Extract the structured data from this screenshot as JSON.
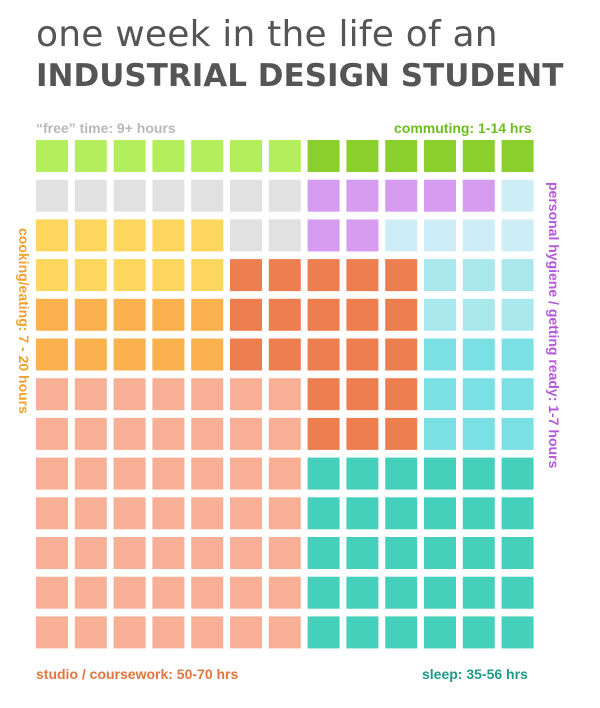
{
  "header": {
    "line1": "one week in the life of an",
    "line2": "INDUSTRIAL DESIGN STUDENT"
  },
  "labels": {
    "free_time": "“free” time: 9+ hours",
    "commuting": "commuting: 1-14 hrs",
    "personal_hygiene": "personal hygiene / getting ready: 1-7 hours",
    "cooking": "cooking/eating: 7 - 20 hours",
    "studio": "studio / coursework: 50-70 hrs",
    "sleep": "sleep: 35-56 hrs"
  },
  "chart_data": {
    "type": "waffle",
    "rows": 13,
    "cols": 13,
    "categories": [
      {
        "key": "C",
        "name": "commuting: 1-14 hrs",
        "range_hrs": [
          1,
          14
        ],
        "color": "#8acf2c"
      },
      {
        "key": "c",
        "name": "commuting: 1-14 hrs (range)",
        "color": "#b4ee5c"
      },
      {
        "key": "F",
        "name": "“free” time: 9+ hours",
        "color": "#e1e1e1"
      },
      {
        "key": "H",
        "name": "personal hygiene / getting ready: 1-7 hours",
        "range_hrs": [
          1,
          7
        ],
        "color": "#d59cf0"
      },
      {
        "key": "h",
        "name": "personal hygiene / getting ready: 1-7 hours (range)",
        "color": "#cdeef7"
      },
      {
        "key": "K",
        "name": "cooking/eating: 7 - 20 hours",
        "range_hrs": [
          7,
          20
        ],
        "color": "#fdd65e"
      },
      {
        "key": "k",
        "name": "cooking/eating: 7 - 20 hours (range)",
        "color": "#fbb14e"
      },
      {
        "key": "S",
        "name": "studio / coursework: 50-70 hrs",
        "range_hrs": [
          50,
          70
        ],
        "color": "#ec7e50"
      },
      {
        "key": "s",
        "name": "studio / coursework: 50-70 hrs (range)",
        "color": "#f7b095"
      },
      {
        "key": "L",
        "name": "sleep: 35-56 hrs",
        "range_hrs": [
          35,
          56
        ],
        "color": "#44d0bb"
      },
      {
        "key": "l",
        "name": "sleep: 35-56 hrs (range)",
        "color": "#a9e9ee"
      },
      {
        "key": "m",
        "name": "sleep: 35-56 hrs (range)",
        "color": "#7ae0e4"
      }
    ],
    "grid": [
      "cccccccCCCCCC",
      "FFFFFFFHHHHHh",
      "KKKKKFFHHhhhh",
      "KKKKKSSSSSlll",
      "kkkkkSSSSSlll",
      "kkkkkSSSSSmmm",
      "sssssssSSSmmm",
      "sssssssSSSmmm",
      "sssssssLLLLLL",
      "sssssssLLLLLL",
      "sssssssLLLLLL",
      "sssssssLLLLLL",
      "sssssssLLLLLL"
    ]
  }
}
